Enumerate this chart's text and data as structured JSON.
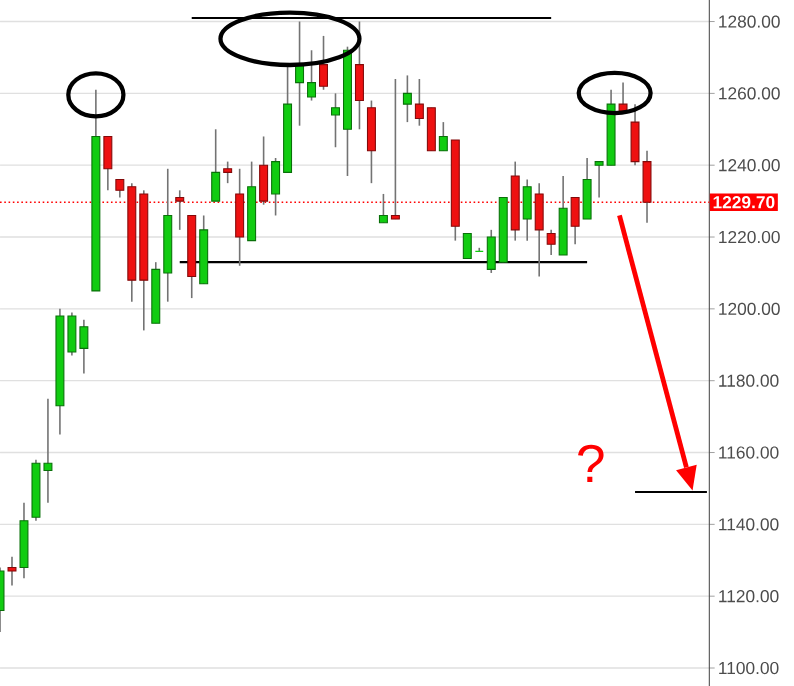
{
  "chart_data": {
    "type": "candlestick",
    "categories": [
      null,
      null,
      null,
      null,
      null,
      null,
      null,
      null,
      null,
      null,
      null,
      null,
      null,
      null,
      null,
      null,
      null,
      null,
      null,
      null,
      null,
      null,
      null,
      null,
      null,
      null,
      null,
      null,
      null,
      null,
      null,
      null,
      null,
      null,
      null,
      null,
      null,
      null,
      null,
      null,
      null,
      null,
      null,
      null,
      null,
      null,
      null,
      null,
      null,
      null,
      null,
      null,
      null,
      null,
      null,
      null,
      null,
      null,
      null,
      null
    ],
    "ohlc": [
      [
        1116,
        1128,
        1110,
        1127
      ],
      [
        1128,
        1131,
        1123,
        1127
      ],
      [
        1128,
        1146,
        1125,
        1141
      ],
      [
        1142,
        1158,
        1141,
        1157
      ],
      [
        1155,
        1175,
        1146,
        1157
      ],
      [
        1173,
        1200,
        1165,
        1198
      ],
      [
        1188,
        1199,
        1187,
        1198
      ],
      [
        1189,
        1197,
        1182,
        1195
      ],
      [
        1205,
        1261,
        1205,
        1248
      ],
      [
        1248,
        1248,
        1233,
        1239
      ],
      [
        1236,
        1236,
        1231,
        1233
      ],
      [
        1234,
        1235,
        1202,
        1208
      ],
      [
        1232,
        1233,
        1194,
        1208
      ],
      [
        1196,
        1213,
        1196,
        1211
      ],
      [
        1210,
        1239,
        1202,
        1226
      ],
      [
        1231,
        1233,
        1222,
        1230
      ],
      [
        1226,
        1226,
        1203,
        1209
      ],
      [
        1207,
        1226,
        1207,
        1222
      ],
      [
        1230,
        1250,
        1230,
        1238
      ],
      [
        1239,
        1241,
        1235,
        1238
      ],
      [
        1232,
        1239,
        1212,
        1220
      ],
      [
        1219,
        1241,
        1219,
        1234
      ],
      [
        1240,
        1248,
        1229,
        1230
      ],
      [
        1232,
        1242,
        1226,
        1241
      ],
      [
        1238,
        1268,
        1238,
        1257
      ],
      [
        1263,
        1280,
        1251,
        1268
      ],
      [
        1259,
        1272,
        1258,
        1263
      ],
      [
        1268,
        1276,
        1261,
        1262
      ],
      [
        1254,
        1260,
        1245,
        1256
      ],
      [
        1250,
        1273,
        1237,
        1272
      ],
      [
        1268,
        1280,
        1250,
        1258
      ],
      [
        1256,
        1258,
        1235,
        1244
      ],
      [
        1224,
        1232,
        1224,
        1226
      ],
      [
        1226,
        1264,
        1225,
        1225
      ],
      [
        1257,
        1265,
        1252,
        1260
      ],
      [
        1257,
        1264,
        1251,
        1253
      ],
      [
        1256,
        1256,
        1244,
        1244
      ],
      [
        1244,
        1252,
        1244,
        1248
      ],
      [
        1247,
        1247,
        1219,
        1223
      ],
      [
        1214,
        1221,
        1214,
        1221
      ],
      [
        1216,
        1217,
        1216,
        1216
      ],
      [
        1211,
        1222,
        1210,
        1220
      ],
      [
        1213,
        1231,
        1213,
        1231
      ],
      [
        1237,
        1241,
        1219,
        1222
      ],
      [
        1225,
        1236,
        1219,
        1234
      ],
      [
        1232,
        1235,
        1209,
        1222
      ],
      [
        1221,
        1222,
        1215,
        1218
      ],
      [
        1215,
        1237,
        1215,
        1228
      ],
      [
        1231,
        1231,
        1218,
        1223
      ],
      [
        1225,
        1242,
        1225,
        1236
      ],
      [
        1240,
        1241,
        1231,
        1241
      ],
      [
        1240,
        1261,
        1240,
        1257
      ],
      [
        1257,
        1263,
        1255,
        1255
      ],
      [
        1252,
        1257,
        1240,
        1241
      ],
      [
        1241,
        1244,
        1224,
        1229.7
      ],
      null,
      null,
      null,
      null,
      null
    ],
    "colors": [
      "#11cc11",
      "#ee1111",
      "#11cc11",
      "#11cc11",
      "#11cc11",
      "#11cc11",
      "#11cc11",
      "#11cc11",
      "#11cc11",
      "#ee1111",
      "#ee1111",
      "#ee1111",
      "#ee1111",
      "#11cc11",
      "#11cc11",
      "#ee1111",
      "#ee1111",
      "#11cc11",
      "#11cc11",
      "#ee1111",
      "#ee1111",
      "#11cc11",
      "#ee1111",
      "#11cc11",
      "#11cc11",
      "#11cc11",
      "#11cc11",
      "#ee1111",
      "#11cc11",
      "#11cc11",
      "#ee1111",
      "#ee1111",
      "#11cc11",
      "#ee1111",
      "#11cc11",
      "#ee1111",
      "#ee1111",
      "#11cc11",
      "#ee1111",
      "#11cc11",
      "#11cc11",
      "#11cc11",
      "#11cc11",
      "#ee1111",
      "#11cc11",
      "#ee1111",
      "#ee1111",
      "#11cc11",
      "#ee1111",
      "#11cc11",
      "#11cc11",
      "#11cc11",
      "#ee1111",
      "#ee1111",
      "#ee1111",
      null,
      null,
      null,
      null,
      null
    ],
    "series": [
      {
        "type": "line",
        "values": [
          null,
          null,
          null,
          null,
          null,
          null,
          null,
          null,
          null,
          null,
          null,
          null,
          null,
          null,
          null,
          null,
          1281,
          1281,
          1281,
          1281,
          1281,
          1281,
          1281,
          1281,
          1281,
          1281,
          1281,
          1281,
          1281,
          1281,
          1281,
          1281,
          1281,
          1281,
          1281,
          1281,
          1281,
          1281,
          1281,
          1281,
          1281,
          1281,
          1281,
          1281,
          1281,
          1281,
          1281,
          null,
          null,
          null,
          null,
          null,
          null,
          null,
          null,
          null,
          null,
          null,
          null,
          null
        ],
        "color": "#000000"
      },
      {
        "type": "line",
        "values": [
          null,
          null,
          null,
          null,
          null,
          null,
          null,
          null,
          null,
          null,
          null,
          null,
          null,
          null,
          null,
          1213,
          1213,
          1213,
          1213,
          1213,
          1213,
          1213,
          1213,
          1213,
          1213,
          1213,
          1213,
          1213,
          1213,
          1213,
          1213,
          1213,
          1213,
          1213,
          1213,
          1213,
          1213,
          1213,
          1213,
          1213,
          1213,
          1213,
          1213,
          1213,
          1213,
          1213,
          1213,
          1213,
          1213,
          1213,
          null,
          null,
          null,
          null,
          null,
          null,
          null,
          null,
          null,
          null
        ],
        "color": "#000000"
      },
      {
        "type": "line",
        "values": [
          null,
          null,
          null,
          null,
          null,
          null,
          null,
          null,
          null,
          null,
          null,
          null,
          null,
          null,
          null,
          null,
          null,
          null,
          null,
          null,
          null,
          null,
          null,
          null,
          null,
          null,
          null,
          null,
          null,
          null,
          null,
          null,
          null,
          null,
          null,
          null,
          null,
          null,
          null,
          null,
          null,
          null,
          null,
          null,
          null,
          null,
          null,
          null,
          null,
          null,
          null,
          null,
          null,
          1149,
          1149,
          1149,
          1149,
          1149,
          1149,
          1149
        ],
        "color": "#000000"
      }
    ],
    "ref_lines": [
      {
        "axis": "y",
        "value": 1229.7,
        "label": "1229.70",
        "color": "#ff0000",
        "line_style": "dotted"
      }
    ],
    "annotations": [
      "?"
    ],
    "ylim": [
      1095,
      1286
    ],
    "yticks": [
      {
        "value": 1100,
        "label": "1100.00"
      },
      {
        "value": 1120,
        "label": "1120.00"
      },
      {
        "value": 1140,
        "label": "1140.00"
      },
      {
        "value": 1160,
        "label": "1160.00"
      },
      {
        "value": 1180,
        "label": "1180.00"
      },
      {
        "value": 1200,
        "label": "1200.00"
      },
      {
        "value": 1220,
        "label": "1220.00"
      },
      {
        "value": 1240,
        "label": "1240.00"
      },
      {
        "value": 1260,
        "label": "1260.00"
      },
      {
        "value": 1280,
        "label": "1280.00"
      }
    ],
    "grid": "y",
    "tick_labels": "y"
  }
}
